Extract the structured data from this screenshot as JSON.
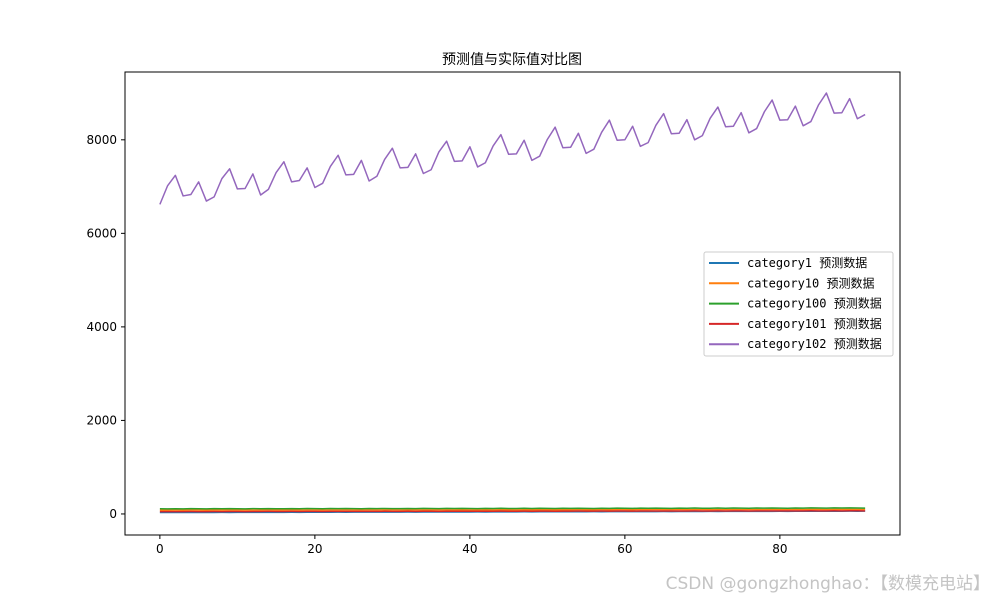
{
  "chart_data": {
    "type": "line",
    "title": "预测值与实际值对比图",
    "xlabel": "",
    "ylabel": "",
    "xlim": [
      -4.5,
      95.5
    ],
    "ylim": [
      -450,
      9450
    ],
    "xticks": [
      0,
      20,
      40,
      60,
      80
    ],
    "yticks": [
      0,
      2000,
      4000,
      6000,
      8000
    ],
    "grid": false,
    "legend_position": "center-right",
    "series": [
      {
        "name": "category1 预测数据",
        "color": "#1f77b4",
        "values": [
          30,
          30,
          31,
          30,
          31,
          32,
          31,
          32,
          33,
          32,
          33,
          34,
          33,
          34,
          35,
          34,
          35,
          36,
          35,
          36,
          37,
          36,
          37,
          38,
          37,
          38,
          39,
          38,
          39,
          40,
          39,
          40,
          41,
          40,
          41,
          42,
          41,
          42,
          43,
          42,
          43,
          44,
          43,
          44,
          45,
          44,
          45,
          46,
          45,
          46,
          47,
          46,
          47,
          48,
          47,
          48,
          49,
          48,
          49,
          50,
          49,
          50,
          51,
          50,
          51,
          52,
          51,
          52,
          53,
          52,
          53,
          54,
          53,
          54,
          55,
          54,
          55,
          56,
          55,
          56,
          57,
          56,
          57,
          58,
          57,
          58,
          59,
          58,
          59,
          60,
          59,
          60
        ]
      },
      {
        "name": "category10 预测数据",
        "color": "#ff7f0e",
        "values": [
          80,
          79,
          81,
          80,
          82,
          81,
          80,
          82,
          81,
          83,
          82,
          81,
          83,
          82,
          84,
          83,
          82,
          84,
          83,
          85,
          84,
          83,
          85,
          84,
          86,
          85,
          84,
          86,
          85,
          87,
          86,
          85,
          87,
          86,
          88,
          87,
          86,
          88,
          87,
          89,
          88,
          87,
          89,
          88,
          90,
          89,
          88,
          90,
          89,
          91,
          90,
          89,
          91,
          90,
          92,
          91,
          90,
          92,
          91,
          93,
          92,
          91,
          93,
          92,
          94,
          93,
          92,
          94,
          93,
          95,
          94,
          93,
          95,
          94,
          96,
          95,
          94,
          96,
          95,
          97,
          96,
          95,
          97,
          96,
          98,
          97,
          96,
          98,
          97,
          99,
          98,
          97
        ]
      },
      {
        "name": "category100 预测数据",
        "color": "#2ca02c",
        "values": [
          110,
          108,
          112,
          109,
          113,
          110,
          108,
          113,
          110,
          114,
          111,
          109,
          114,
          111,
          115,
          112,
          110,
          115,
          112,
          116,
          113,
          111,
          116,
          113,
          117,
          114,
          112,
          117,
          114,
          118,
          115,
          113,
          118,
          115,
          119,
          116,
          114,
          119,
          116,
          120,
          117,
          115,
          120,
          117,
          121,
          118,
          116,
          121,
          118,
          122,
          119,
          117,
          122,
          119,
          123,
          120,
          118,
          123,
          120,
          124,
          121,
          119,
          124,
          121,
          125,
          122,
          120,
          125,
          122,
          126,
          123,
          121,
          126,
          123,
          127,
          124,
          122,
          127,
          124,
          128,
          125,
          123,
          128,
          125,
          129,
          126,
          124,
          129,
          126,
          130,
          127,
          125
        ]
      },
      {
        "name": "category101 预测数据",
        "color": "#d62728",
        "values": [
          50,
          49,
          51,
          50,
          52,
          51,
          50,
          52,
          51,
          53,
          52,
          51,
          53,
          52,
          54,
          53,
          52,
          54,
          53,
          55,
          54,
          53,
          55,
          54,
          56,
          55,
          54,
          56,
          55,
          57,
          56,
          55,
          57,
          56,
          58,
          57,
          56,
          58,
          57,
          59,
          58,
          57,
          59,
          58,
          60,
          59,
          58,
          60,
          59,
          61,
          60,
          59,
          61,
          60,
          62,
          61,
          60,
          62,
          61,
          63,
          62,
          61,
          63,
          62,
          64,
          63,
          62,
          64,
          63,
          65,
          64,
          63,
          65,
          64,
          66,
          65,
          64,
          66,
          65,
          67,
          66,
          65,
          67,
          66,
          68,
          67,
          66,
          68,
          67,
          69,
          68,
          67
        ]
      },
      {
        "name": "category102 预测数据",
        "color": "#9467bd",
        "values": [
          6620,
          7020,
          7240,
          6800,
          6830,
          7100,
          6690,
          6780,
          7170,
          7380,
          6950,
          6960,
          7270,
          6820,
          6940,
          7300,
          7530,
          7100,
          7130,
          7400,
          6980,
          7070,
          7430,
          7670,
          7250,
          7260,
          7560,
          7120,
          7220,
          7580,
          7820,
          7400,
          7410,
          7700,
          7280,
          7360,
          7740,
          7970,
          7540,
          7550,
          7850,
          7420,
          7510,
          7870,
          8110,
          7690,
          7700,
          7990,
          7560,
          7650,
          8010,
          8270,
          7830,
          7840,
          8140,
          7710,
          7800,
          8160,
          8420,
          7990,
          8000,
          8290,
          7860,
          7940,
          8310,
          8560,
          8130,
          8140,
          8430,
          8000,
          8090,
          8460,
          8700,
          8280,
          8290,
          8580,
          8150,
          8240,
          8600,
          8850,
          8420,
          8430,
          8720,
          8300,
          8390,
          8750,
          9000,
          8570,
          8580,
          8880,
          8450,
          8540
        ]
      }
    ]
  },
  "watermark": {
    "text": "CSDN @gongzhonghao：【数模充电站】"
  }
}
